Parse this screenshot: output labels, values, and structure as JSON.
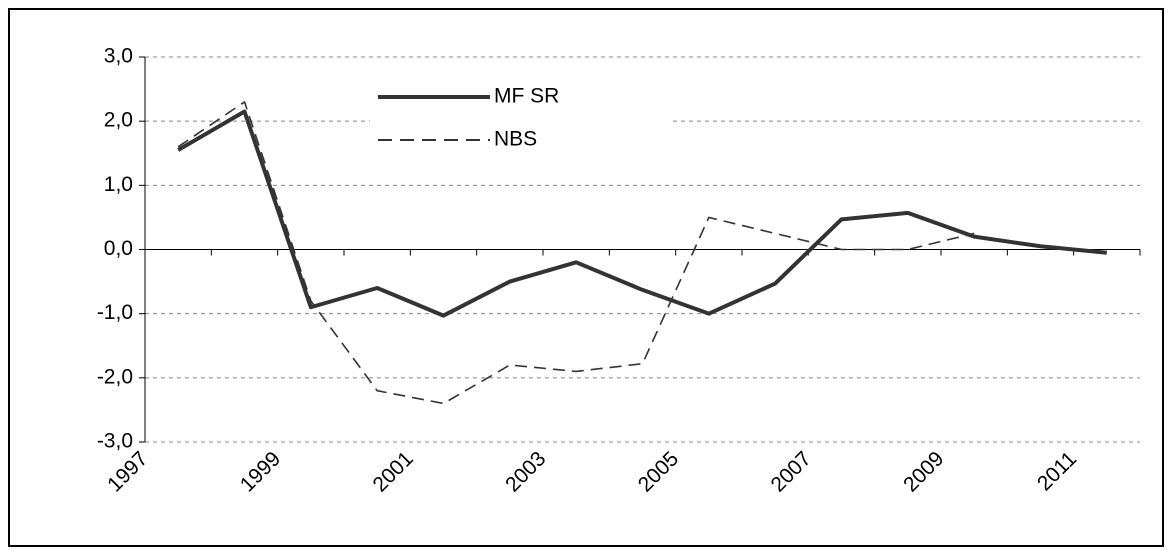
{
  "chart_data": {
    "type": "line",
    "categories": [
      "1997",
      null,
      "1999",
      null,
      "2001",
      null,
      "2003",
      null,
      "2005",
      null,
      "2007",
      null,
      "2009",
      null,
      "2011"
    ],
    "series": [
      {
        "name": "MF SR",
        "color": "#333333",
        "dash": "solid",
        "values": [
          1.55,
          2.15,
          -0.9,
          -0.6,
          -1.03,
          -0.5,
          -0.2,
          -0.63,
          -1.0,
          -0.53,
          0.47,
          0.57,
          0.2,
          0.05,
          -0.05
        ]
      },
      {
        "name": "NBS",
        "color": "#333333",
        "dash": "dashed",
        "values": [
          1.6,
          2.3,
          -0.8,
          -2.2,
          -2.4,
          -1.8,
          -1.9,
          -1.78,
          0.5,
          0.25,
          0.0,
          0.0,
          0.25,
          null,
          null
        ]
      }
    ],
    "ylim": [
      -3,
      3
    ],
    "yticks": [
      {
        "value": -3,
        "label": "-3,0"
      },
      {
        "value": -2,
        "label": "-2,0"
      },
      {
        "value": -1,
        "label": "-1,0"
      },
      {
        "value": 0,
        "label": "0,0"
      },
      {
        "value": 1,
        "label": "1,0"
      },
      {
        "value": 2,
        "label": "2,0"
      },
      {
        "value": 3,
        "label": "3,0"
      }
    ],
    "grid": true
  }
}
